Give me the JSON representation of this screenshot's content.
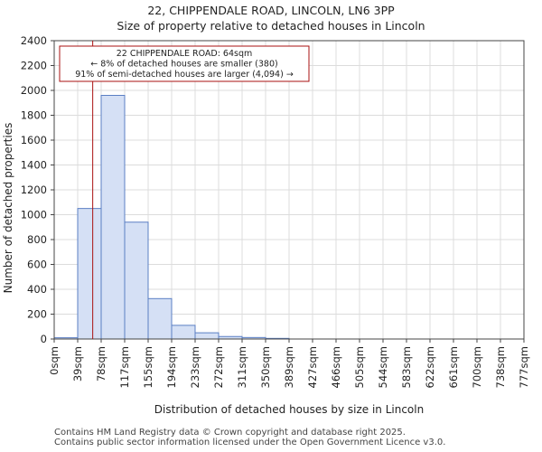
{
  "header": {
    "title": "22, CHIPPENDALE ROAD, LINCOLN, LN6 3PP",
    "subtitle": "Size of property relative to detached houses in Lincoln"
  },
  "chart_data": {
    "type": "bar",
    "xlabel": "Distribution of detached houses by size in Lincoln",
    "ylabel": "Number of detached properties",
    "ylim": [
      0,
      2400
    ],
    "yticks": [
      0,
      200,
      400,
      600,
      800,
      1000,
      1200,
      1400,
      1600,
      1800,
      2000,
      2200,
      2400
    ],
    "bin_edges_label": [
      "0sqm",
      "39sqm",
      "78sqm",
      "117sqm",
      "155sqm",
      "194sqm",
      "233sqm",
      "272sqm",
      "311sqm",
      "350sqm",
      "389sqm",
      "427sqm",
      "466sqm",
      "505sqm",
      "544sqm",
      "583sqm",
      "622sqm",
      "661sqm",
      "700sqm",
      "738sqm",
      "777sqm"
    ],
    "values": [
      10,
      1050,
      1960,
      940,
      325,
      110,
      50,
      20,
      12,
      5,
      0,
      0,
      0,
      0,
      0,
      0,
      0,
      0,
      0,
      0
    ],
    "grid": true,
    "bar_color": "#d5e0f5",
    "bar_edge_color": "#5b7fc4",
    "marker": {
      "value_bin": 1.64,
      "color": "#aa1111",
      "annotation": [
        "22 CHIPPENDALE ROAD: 64sqm",
        "← 8% of detached houses are smaller (380)",
        "91% of semi-detached houses are larger (4,094) →"
      ]
    }
  },
  "footer": {
    "line1": "Contains HM Land Registry data © Crown copyright and database right 2025.",
    "line2": "Contains public sector information licensed under the Open Government Licence v3.0."
  }
}
